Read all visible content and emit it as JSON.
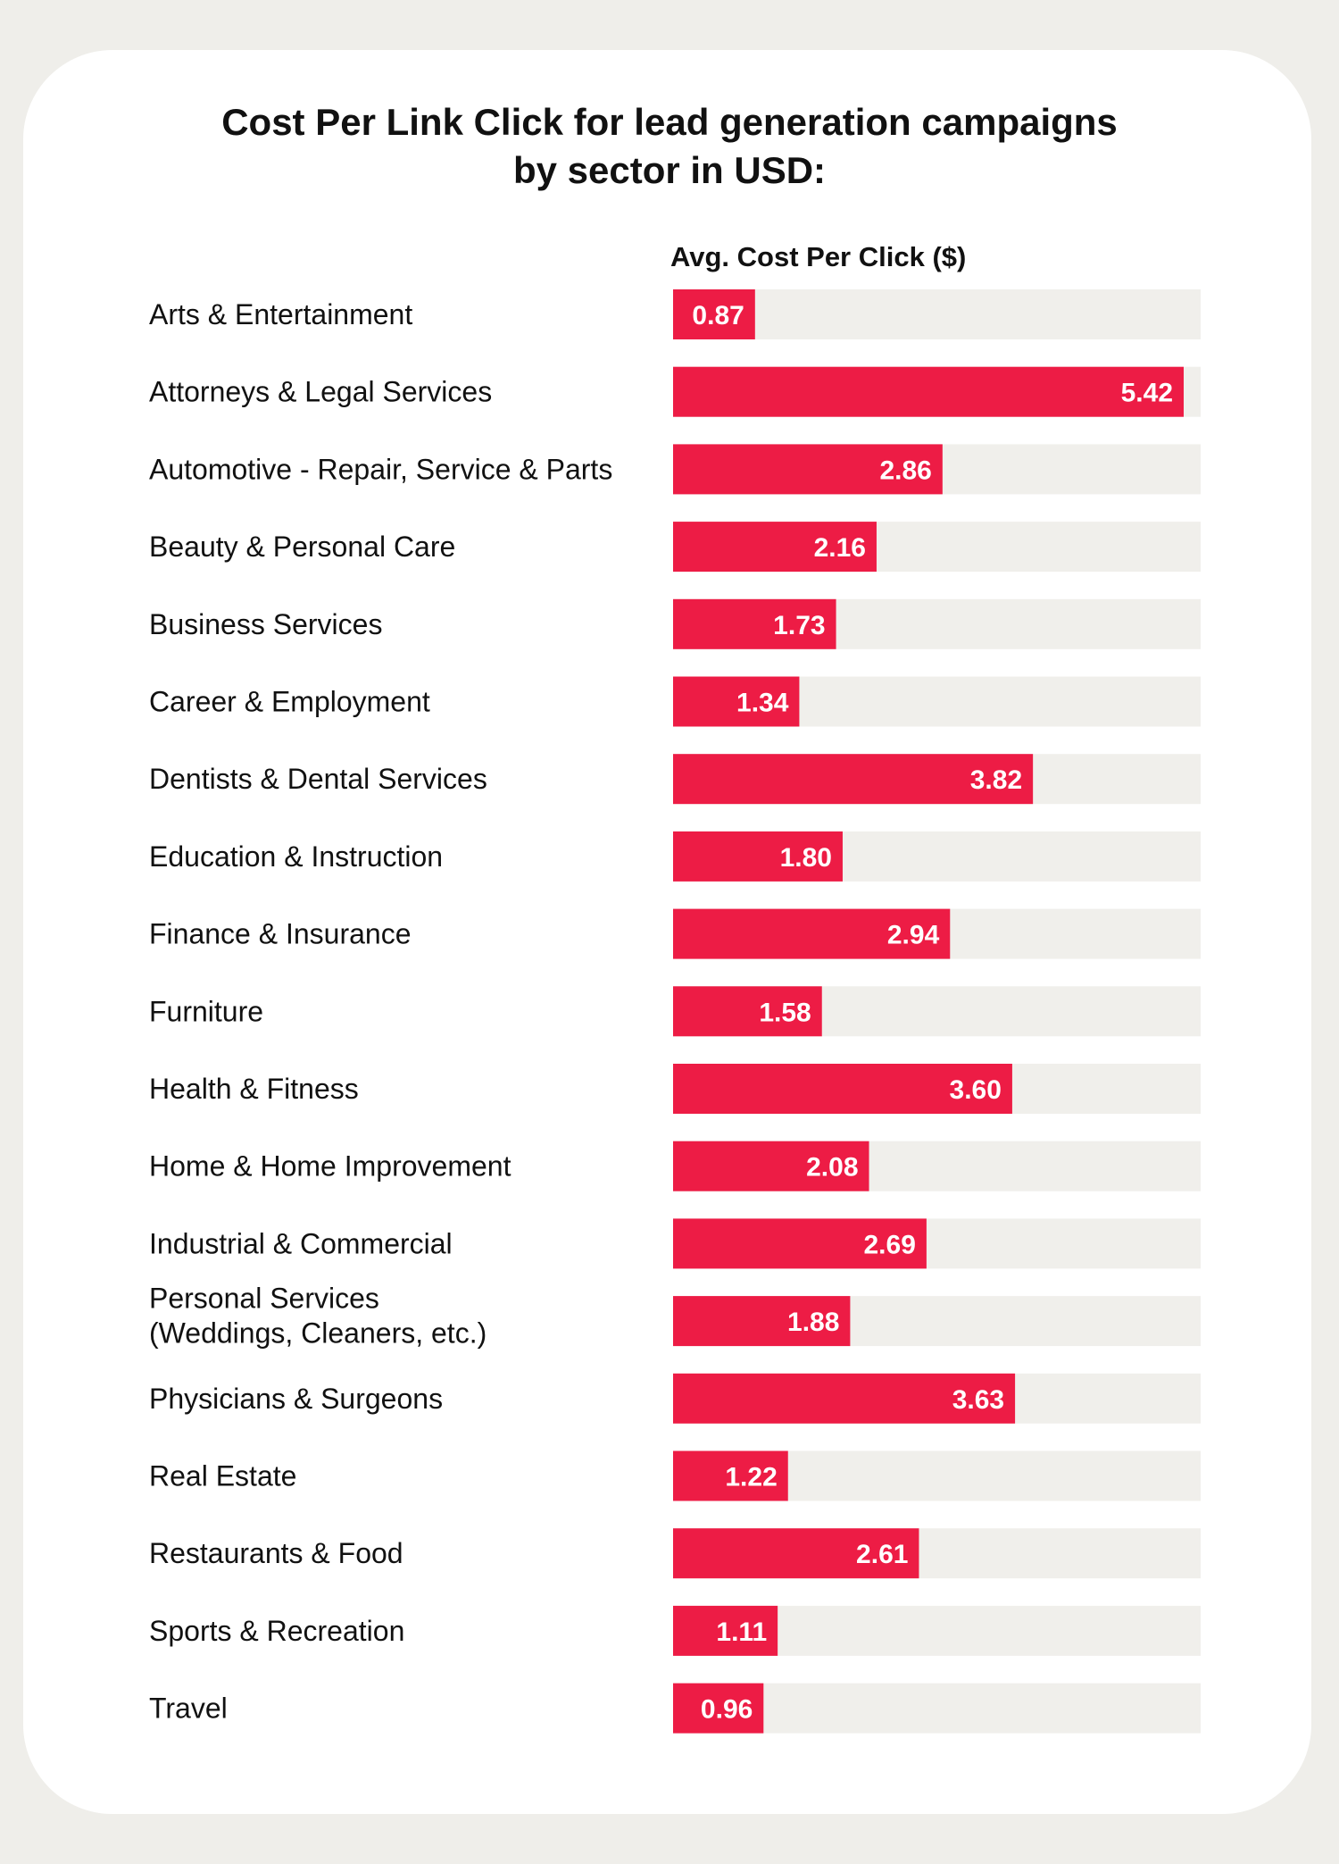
{
  "colors": {
    "bar": "#ed1c45",
    "track": "#f0efeb",
    "background": "#efeeea",
    "card": "#ffffff"
  },
  "chart_data": {
    "type": "bar",
    "orientation": "horizontal",
    "title": "Cost Per Link Click for lead generation campaigns\nby sector in USD:",
    "xlabel": "Avg. Cost Per Click ($)",
    "ylabel": "",
    "xlim": [
      0,
      5.6
    ],
    "grid": false,
    "categories": [
      "Arts & Entertainment",
      "Attorneys & Legal Services",
      "Automotive - Repair, Service & Parts",
      "Beauty & Personal Care",
      "Business Services",
      "Career & Employment",
      "Dentists & Dental Services",
      "Education & Instruction",
      "Finance & Insurance",
      "Furniture",
      "Health & Fitness",
      "Home & Home Improvement",
      "Industrial & Commercial",
      "Personal Services\n(Weddings, Cleaners, etc.)",
      "Physicians & Surgeons",
      "Real Estate",
      "Restaurants & Food",
      "Sports & Recreation",
      "Travel"
    ],
    "values": [
      0.87,
      5.42,
      2.86,
      2.16,
      1.73,
      1.34,
      3.82,
      1.8,
      2.94,
      1.58,
      3.6,
      2.08,
      2.69,
      1.88,
      3.63,
      1.22,
      2.61,
      1.11,
      0.96
    ],
    "value_labels": [
      "0.87",
      "5.42",
      "2.86",
      "2.16",
      "1.73",
      "1.34",
      "3.82",
      "1.80",
      "2.94",
      "1.58",
      "3.60",
      "2.08",
      "2.69",
      "1.88",
      "3.63",
      "1.22",
      "2.61",
      "1.11",
      "0.96"
    ]
  }
}
